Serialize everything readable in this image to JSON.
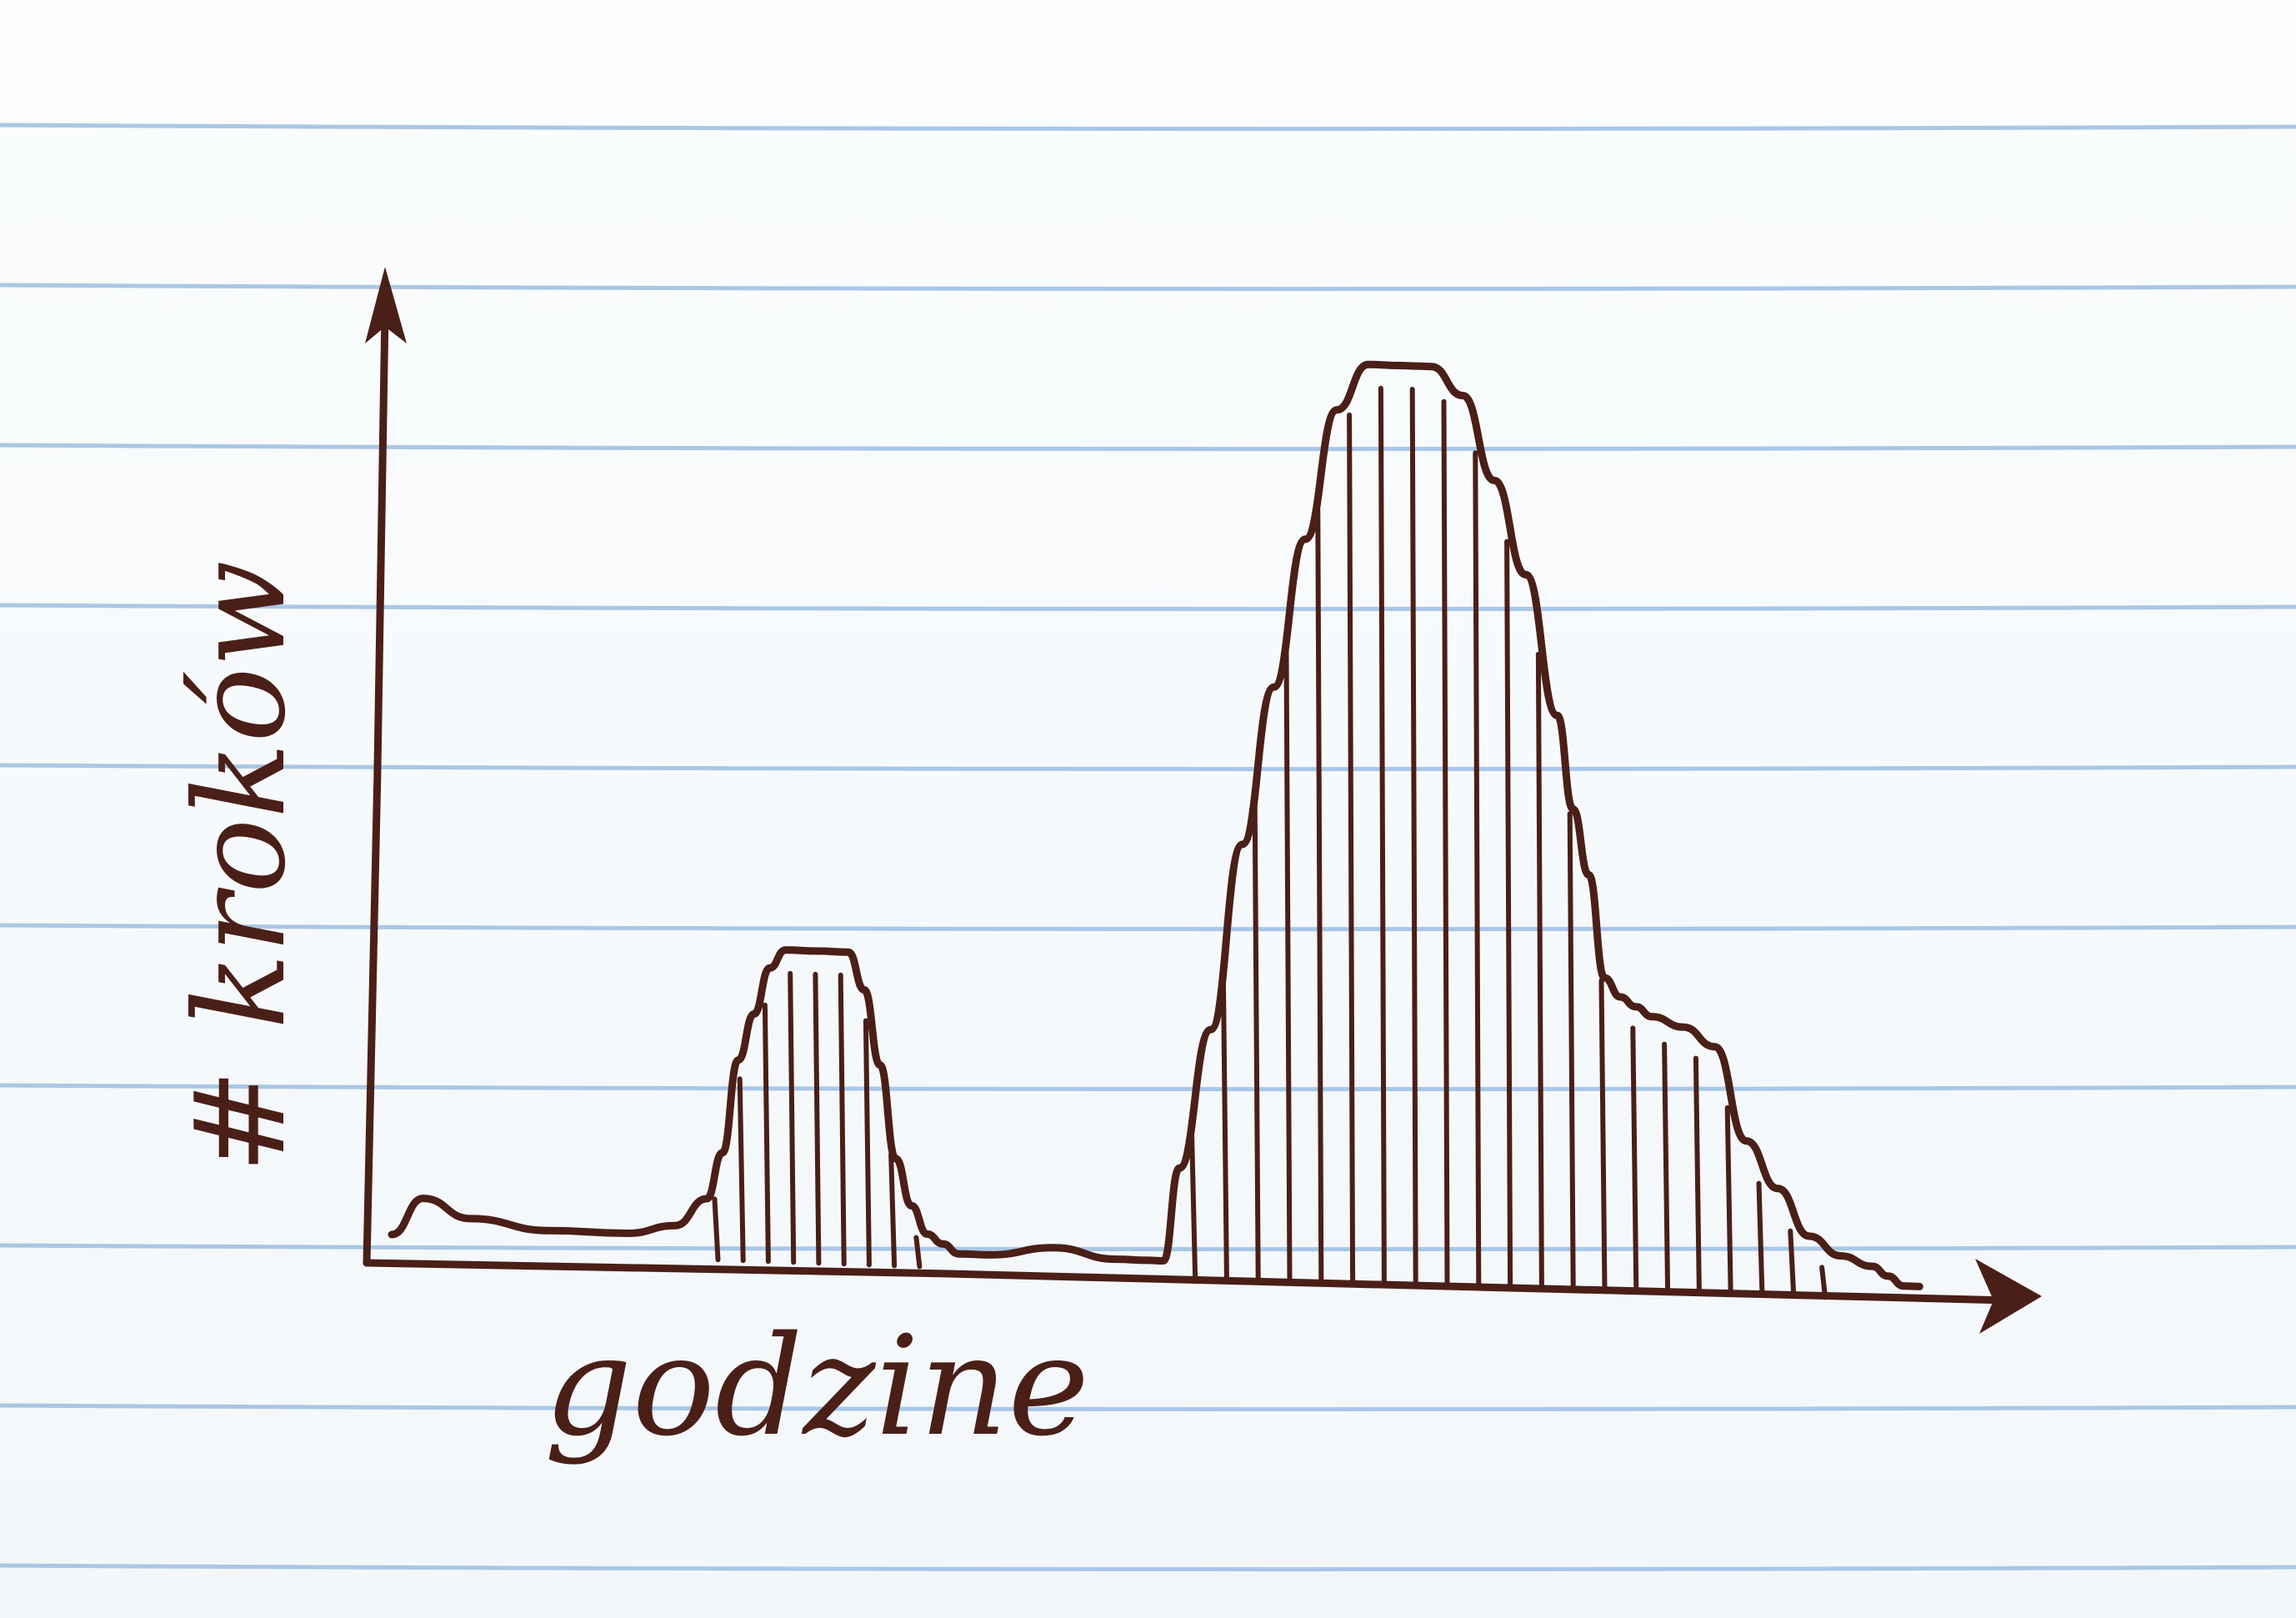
{
  "chart_data": {
    "type": "area",
    "title": "",
    "xlabel": "godzine",
    "ylabel": "# kroków",
    "ink_color": "#4a1f18",
    "line_color": "#a9c7e6",
    "grid": false,
    "legend": "none",
    "xlim": [
      0,
      100
    ],
    "ylim": [
      0,
      100
    ],
    "series": [
      {
        "x": [
          0,
          2,
          5,
          10,
          15,
          18,
          20,
          21,
          22,
          23,
          24,
          25,
          27,
          29,
          30,
          31,
          32,
          33,
          34,
          35,
          36,
          38,
          42,
          46,
          48,
          49,
          50,
          52,
          54,
          56,
          58,
          60,
          62,
          64,
          65,
          66,
          68,
          70,
          72,
          74,
          75,
          76,
          77,
          78,
          79,
          80,
          82,
          84,
          86,
          88,
          90,
          92,
          94,
          95,
          96,
          97
        ],
        "y": [
          0,
          4,
          2,
          1,
          1,
          2,
          5,
          10,
          20,
          25,
          30,
          32,
          32,
          32,
          28,
          20,
          10,
          5,
          2,
          1,
          0,
          0,
          1,
          0,
          0,
          0,
          10,
          25,
          45,
          62,
          78,
          92,
          97,
          97,
          97,
          97,
          94,
          85,
          75,
          60,
          50,
          43,
          32,
          30,
          29,
          28,
          27,
          25,
          15,
          10,
          5,
          3,
          2,
          1,
          0,
          0
        ]
      }
    ]
  }
}
